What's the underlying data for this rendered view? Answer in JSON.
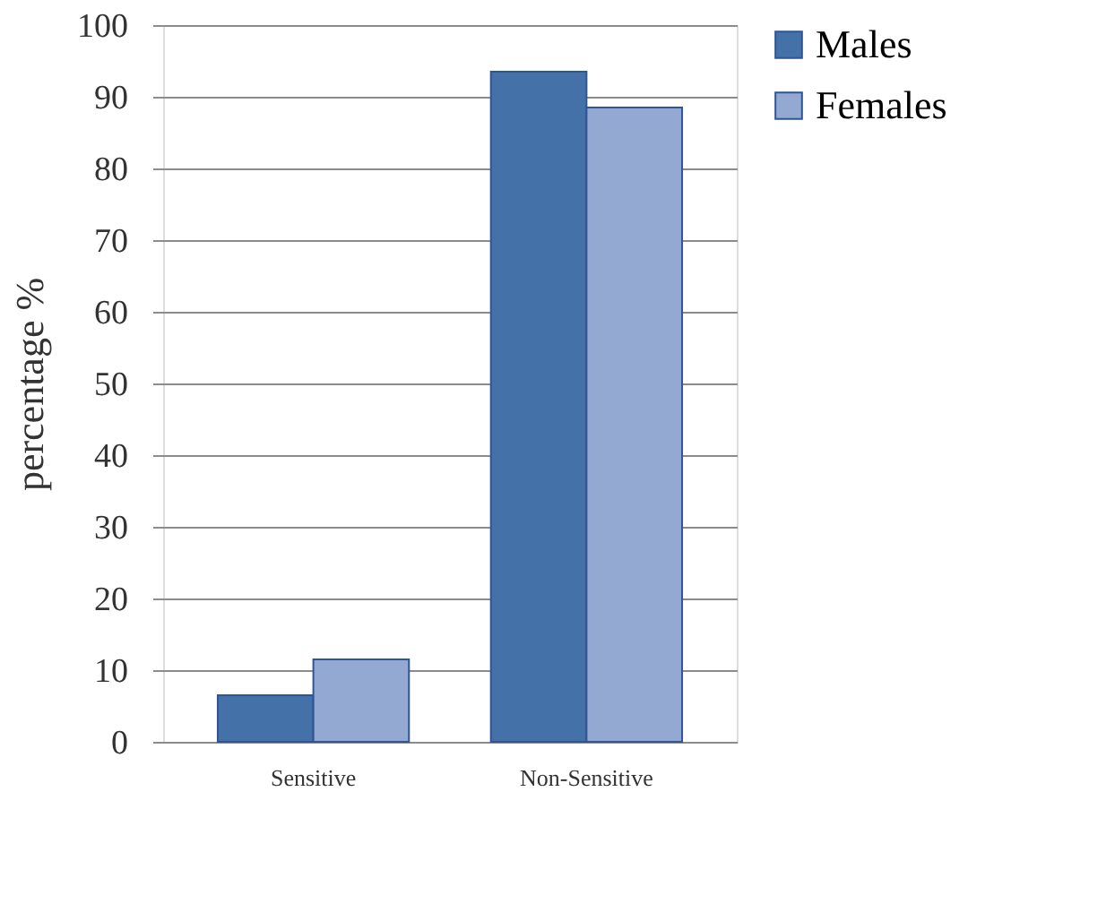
{
  "chart_data": {
    "type": "bar",
    "ylabel": "percentage %",
    "categories": [
      "Sensitive",
      "Non-Sensitive"
    ],
    "series": [
      {
        "name": "Males",
        "color": "#4472a8",
        "values": [
          6.5,
          93.5
        ]
      },
      {
        "name": "Females",
        "color": "#93a9d1",
        "values": [
          11.5,
          88.5
        ]
      }
    ],
    "ylim": [
      0,
      100
    ],
    "yticks": [
      0,
      10,
      20,
      30,
      40,
      50,
      60,
      70,
      80,
      90,
      100
    ],
    "grid": "y",
    "legend": "right"
  }
}
